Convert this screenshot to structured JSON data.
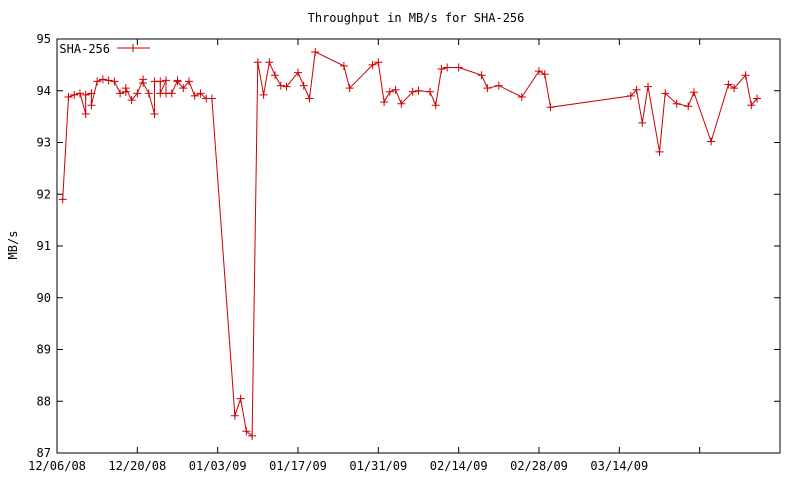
{
  "chart_data": {
    "type": "line",
    "title": "Throughput in MB/s for SHA-256",
    "xlabel": "",
    "ylabel": "MB/s",
    "ylim": [
      87,
      95
    ],
    "xlim": [
      "2008-12-06",
      "2009-04-11"
    ],
    "yticks": [
      "87",
      "88",
      "89",
      "90",
      "91",
      "92",
      "93",
      "94",
      "95"
    ],
    "xticks": [
      {
        "date": "2008-12-06",
        "label": "12/06/08"
      },
      {
        "date": "2008-12-20",
        "label": "12/20/08"
      },
      {
        "date": "2009-01-03",
        "label": "01/03/09"
      },
      {
        "date": "2009-01-17",
        "label": "01/17/09"
      },
      {
        "date": "2009-01-31",
        "label": "01/31/09"
      },
      {
        "date": "2009-02-14",
        "label": "02/14/09"
      },
      {
        "date": "2009-02-28",
        "label": "02/28/09"
      },
      {
        "date": "2009-03-14",
        "label": "03/14/09"
      },
      {
        "date": "2009-03-28",
        "label": ""
      }
    ],
    "legend_position": "top-left",
    "grid": false,
    "color": "#cc0000",
    "series": [
      {
        "name": "SHA-256",
        "points": [
          [
            "2008-12-07",
            91.9
          ],
          [
            "2008-12-08",
            93.88
          ],
          [
            "2008-12-09",
            93.92
          ],
          [
            "2008-12-10",
            93.95
          ],
          [
            "2008-12-11",
            93.55
          ],
          [
            "2008-12-11",
            93.92
          ],
          [
            "2008-12-12",
            93.95
          ],
          [
            "2008-12-12",
            93.72
          ],
          [
            "2008-12-13",
            94.18
          ],
          [
            "2008-12-14",
            94.22
          ],
          [
            "2008-12-15",
            94.2
          ],
          [
            "2008-12-16",
            94.18
          ],
          [
            "2008-12-17",
            93.95
          ],
          [
            "2008-12-18",
            93.98
          ],
          [
            "2008-12-18",
            94.05
          ],
          [
            "2008-12-19",
            93.82
          ],
          [
            "2008-12-20",
            93.95
          ],
          [
            "2008-12-21",
            94.22
          ],
          [
            "2008-12-21",
            94.15
          ],
          [
            "2008-12-22",
            93.95
          ],
          [
            "2008-12-23",
            93.55
          ],
          [
            "2008-12-23",
            94.18
          ],
          [
            "2008-12-24",
            94.18
          ],
          [
            "2008-12-24",
            93.95
          ],
          [
            "2008-12-25",
            94.2
          ],
          [
            "2008-12-25",
            93.95
          ],
          [
            "2008-12-26",
            93.95
          ],
          [
            "2008-12-27",
            94.2
          ],
          [
            "2008-12-27",
            94.18
          ],
          [
            "2008-12-28",
            94.05
          ],
          [
            "2008-12-29",
            94.18
          ],
          [
            "2008-12-30",
            93.9
          ],
          [
            "2008-12-31",
            93.95
          ],
          [
            "2009-01-01",
            93.85
          ],
          [
            "2009-01-02",
            93.85
          ],
          [
            "2009-01-06",
            87.72
          ],
          [
            "2009-01-07",
            88.05
          ],
          [
            "2009-01-08",
            87.42
          ],
          [
            "2009-01-09",
            87.33
          ],
          [
            "2009-01-10",
            94.55
          ],
          [
            "2009-01-11",
            93.92
          ],
          [
            "2009-01-12",
            94.55
          ],
          [
            "2009-01-13",
            94.3
          ],
          [
            "2009-01-14",
            94.1
          ],
          [
            "2009-01-15",
            94.08
          ],
          [
            "2009-01-17",
            94.35
          ],
          [
            "2009-01-18",
            94.1
          ],
          [
            "2009-01-19",
            93.85
          ],
          [
            "2009-01-20",
            94.75
          ],
          [
            "2009-01-25",
            94.48
          ],
          [
            "2009-01-26",
            94.05
          ],
          [
            "2009-01-30",
            94.5
          ],
          [
            "2009-01-31",
            94.55
          ],
          [
            "2009-02-01",
            93.78
          ],
          [
            "2009-02-02",
            93.98
          ],
          [
            "2009-02-03",
            94.02
          ],
          [
            "2009-02-04",
            93.75
          ],
          [
            "2009-02-06",
            93.98
          ],
          [
            "2009-02-07",
            94.0
          ],
          [
            "2009-02-09",
            93.98
          ],
          [
            "2009-02-10",
            93.72
          ],
          [
            "2009-02-11",
            94.42
          ],
          [
            "2009-02-12",
            94.45
          ],
          [
            "2009-02-14",
            94.45
          ],
          [
            "2009-02-18",
            94.3
          ],
          [
            "2009-02-19",
            94.05
          ],
          [
            "2009-02-21",
            94.1
          ],
          [
            "2009-02-25",
            93.88
          ],
          [
            "2009-02-28",
            94.38
          ],
          [
            "2009-03-01",
            94.32
          ],
          [
            "2009-03-02",
            93.68
          ],
          [
            "2009-03-16",
            93.9
          ],
          [
            "2009-03-17",
            94.02
          ],
          [
            "2009-03-18",
            93.38
          ],
          [
            "2009-03-19",
            94.08
          ],
          [
            "2009-03-21",
            92.82
          ],
          [
            "2009-03-22",
            93.95
          ],
          [
            "2009-03-24",
            93.75
          ],
          [
            "2009-03-26",
            93.7
          ],
          [
            "2009-03-27",
            93.97
          ],
          [
            "2009-03-30",
            93.02
          ],
          [
            "2009-04-02",
            94.12
          ],
          [
            "2009-04-03",
            94.05
          ],
          [
            "2009-04-05",
            94.3
          ],
          [
            "2009-04-06",
            93.72
          ],
          [
            "2009-04-07",
            93.85
          ]
        ]
      }
    ]
  }
}
